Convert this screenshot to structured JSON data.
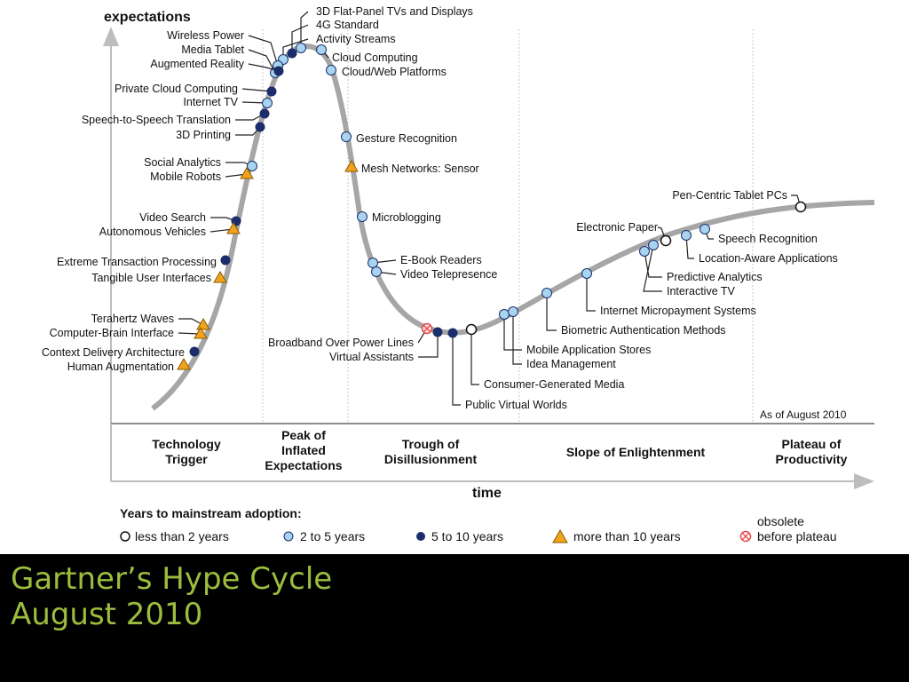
{
  "title_caption": {
    "line1": "Gartner’s Hype Cycle",
    "line2": "August 2010"
  },
  "axes": {
    "y_label": "expectations",
    "x_label": "time"
  },
  "as_of": "As of August 2010",
  "phases": [
    "Technology Trigger",
    "Peak of Inflated Expectations",
    "Trough of Disillusionment",
    "Slope of Enlightenment",
    "Plateau of Productivity"
  ],
  "legend": {
    "title": "Years to mainstream adoption:",
    "items": [
      {
        "label": "less than 2 years",
        "marker": "open-circle"
      },
      {
        "label": "2 to 5 years",
        "marker": "light-blue-circle"
      },
      {
        "label": "5 to 10 years",
        "marker": "dark-blue-circle"
      },
      {
        "label": "more than 10 years",
        "marker": "orange-triangle"
      },
      {
        "label": "obsolete before plateau",
        "marker": "red-cross-circle"
      }
    ]
  },
  "colors": {
    "caption": "#9cbd3e",
    "curve": "#a6a6a6",
    "dark_blue": "#1b2d6b",
    "light_blue": "#a8d4ef",
    "orange": "#f2a31b",
    "obsolete": "#e34848"
  },
  "technologies": [
    {
      "name": "3D Flat-Panel TVs and Displays",
      "marker": "light"
    },
    {
      "name": "4G Standard",
      "marker": "dark"
    },
    {
      "name": "Activity Streams",
      "marker": "light"
    },
    {
      "name": "Wireless Power",
      "marker": "light"
    },
    {
      "name": "Media Tablet",
      "marker": "light"
    },
    {
      "name": "Augmented Reality",
      "marker": "dark"
    },
    {
      "name": "Cloud Computing",
      "marker": "light"
    },
    {
      "name": "Cloud/Web Platforms",
      "marker": "light"
    },
    {
      "name": "Private Cloud Computing",
      "marker": "dark"
    },
    {
      "name": "Internet TV",
      "marker": "light"
    },
    {
      "name": "Speech-to-Speech Translation",
      "marker": "dark"
    },
    {
      "name": "3D Printing",
      "marker": "dark"
    },
    {
      "name": "Gesture Recognition",
      "marker": "light"
    },
    {
      "name": "Mesh Networks: Sensor",
      "marker": "orange"
    },
    {
      "name": "Social Analytics",
      "marker": "light"
    },
    {
      "name": "Mobile Robots",
      "marker": "orange"
    },
    {
      "name": "Microblogging",
      "marker": "light"
    },
    {
      "name": "Video Search",
      "marker": "dark"
    },
    {
      "name": "Autonomous Vehicles",
      "marker": "orange"
    },
    {
      "name": "E-Book Readers",
      "marker": "light"
    },
    {
      "name": "Video Telepresence",
      "marker": "light"
    },
    {
      "name": "Extreme Transaction Processing",
      "marker": "dark"
    },
    {
      "name": "Tangible User Interfaces",
      "marker": "orange"
    },
    {
      "name": "Terahertz Waves",
      "marker": "orange"
    },
    {
      "name": "Computer-Brain Interface",
      "marker": "orange"
    },
    {
      "name": "Context Delivery Architecture",
      "marker": "dark"
    },
    {
      "name": "Human Augmentation",
      "marker": "orange"
    },
    {
      "name": "Broadband Over Power Lines",
      "marker": "obsolete"
    },
    {
      "name": "Virtual Assistants",
      "marker": "dark"
    },
    {
      "name": "Public Virtual Worlds",
      "marker": "dark"
    },
    {
      "name": "Consumer-Generated Media",
      "marker": "open"
    },
    {
      "name": "Mobile Application Stores",
      "marker": "light"
    },
    {
      "name": "Idea Management",
      "marker": "light"
    },
    {
      "name": "Biometric Authentication Methods",
      "marker": "light"
    },
    {
      "name": "Internet Micropayment Systems",
      "marker": "light"
    },
    {
      "name": "Predictive Analytics",
      "marker": "light"
    },
    {
      "name": "Interactive TV",
      "marker": "light"
    },
    {
      "name": "Electronic Paper",
      "marker": "open"
    },
    {
      "name": "Location-Aware Applications",
      "marker": "light"
    },
    {
      "name": "Speech Recognition",
      "marker": "light"
    },
    {
      "name": "Pen-Centric Tablet PCs",
      "marker": "open"
    }
  ]
}
